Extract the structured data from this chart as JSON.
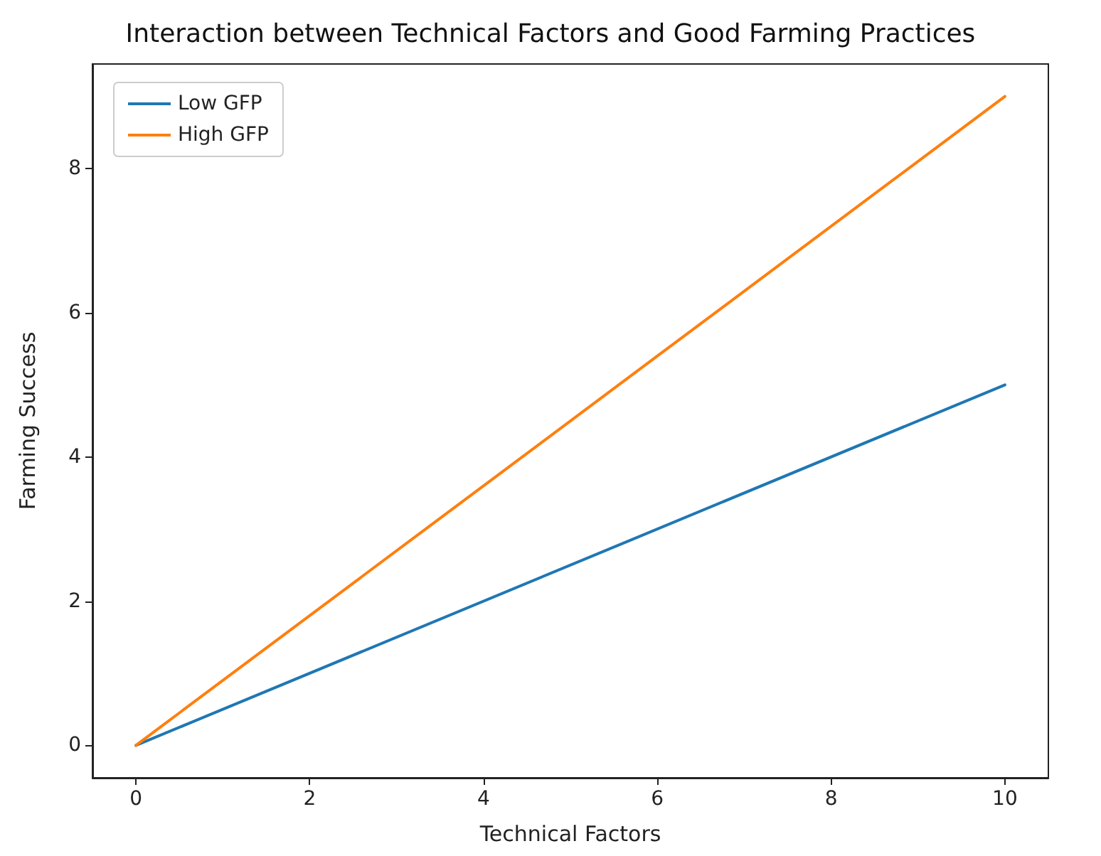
{
  "chart_data": {
    "type": "line",
    "title": "Interaction between Technical Factors and Good Farming Practices",
    "xlabel": "Technical Factors",
    "ylabel": "Farming Success",
    "x": [
      0,
      10
    ],
    "series": [
      {
        "name": "Low GFP",
        "color": "#1f77b4",
        "values": [
          0,
          5
        ]
      },
      {
        "name": "High GFP",
        "color": "#ff7f0e",
        "values": [
          0,
          9
        ]
      }
    ],
    "xlim": [
      -0.5,
      10.5
    ],
    "xticks": [
      0,
      2,
      4,
      6,
      8,
      10
    ],
    "ylim": [
      -0.45,
      9.45
    ],
    "yticks": [
      0,
      2,
      4,
      6,
      8
    ],
    "grid": false,
    "legend": "top left",
    "marker": "none",
    "line_style": "solid"
  }
}
